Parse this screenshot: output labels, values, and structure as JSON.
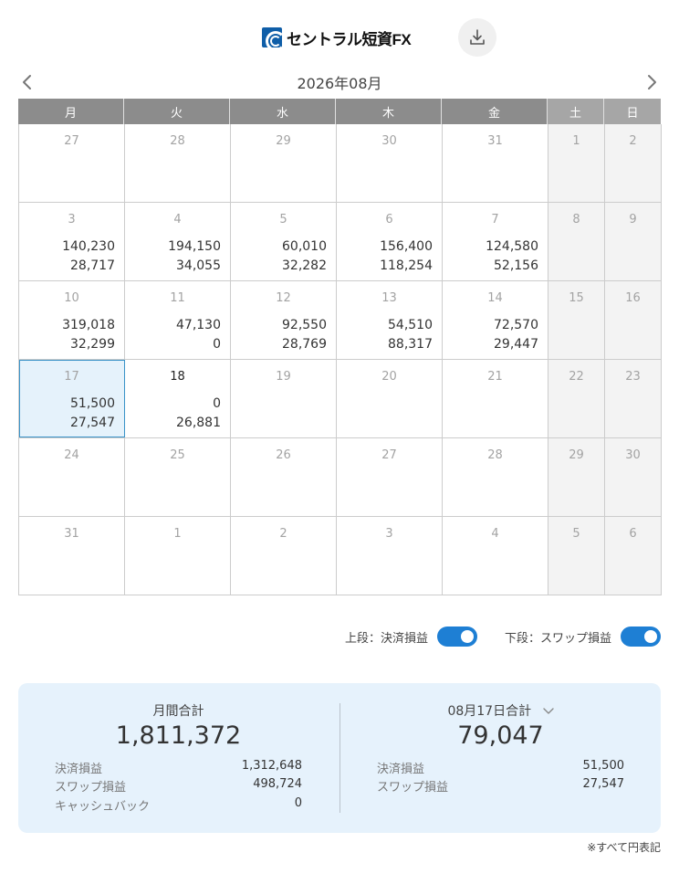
{
  "header": {
    "logo_text": "セントラル短資FX",
    "download_icon": "download-icon"
  },
  "month": {
    "title": "2026年08月",
    "prev_icon": "chevron-left-icon",
    "next_icon": "chevron-right-icon"
  },
  "weekdays": [
    "月",
    "火",
    "水",
    "木",
    "金",
    "土",
    "日"
  ],
  "calendar": {
    "weeks": [
      [
        {
          "day": "27",
          "v1": "",
          "v2": ""
        },
        {
          "day": "28",
          "v1": "",
          "v2": ""
        },
        {
          "day": "29",
          "v1": "",
          "v2": ""
        },
        {
          "day": "30",
          "v1": "",
          "v2": ""
        },
        {
          "day": "31",
          "v1": "",
          "v2": ""
        },
        {
          "day": "1",
          "v1": "",
          "v2": ""
        },
        {
          "day": "2",
          "v1": "",
          "v2": ""
        }
      ],
      [
        {
          "day": "3",
          "v1": "140,230",
          "v2": "28,717"
        },
        {
          "day": "4",
          "v1": "194,150",
          "v2": "34,055"
        },
        {
          "day": "5",
          "v1": "60,010",
          "v2": "32,282"
        },
        {
          "day": "6",
          "v1": "156,400",
          "v2": "118,254"
        },
        {
          "day": "7",
          "v1": "124,580",
          "v2": "52,156"
        },
        {
          "day": "8",
          "v1": "",
          "v2": ""
        },
        {
          "day": "9",
          "v1": "",
          "v2": ""
        }
      ],
      [
        {
          "day": "10",
          "v1": "319,018",
          "v2": "32,299"
        },
        {
          "day": "11",
          "v1": "47,130",
          "v2": "0"
        },
        {
          "day": "12",
          "v1": "92,550",
          "v2": "28,769"
        },
        {
          "day": "13",
          "v1": "54,510",
          "v2": "88,317"
        },
        {
          "day": "14",
          "v1": "72,570",
          "v2": "29,447"
        },
        {
          "day": "15",
          "v1": "",
          "v2": ""
        },
        {
          "day": "16",
          "v1": "",
          "v2": ""
        }
      ],
      [
        {
          "day": "17",
          "v1": "51,500",
          "v2": "27,547"
        },
        {
          "day": "18",
          "v1": "0",
          "v2": "26,881"
        },
        {
          "day": "19",
          "v1": "",
          "v2": ""
        },
        {
          "day": "20",
          "v1": "",
          "v2": ""
        },
        {
          "day": "21",
          "v1": "",
          "v2": ""
        },
        {
          "day": "22",
          "v1": "",
          "v2": ""
        },
        {
          "day": "23",
          "v1": "",
          "v2": ""
        }
      ],
      [
        {
          "day": "24",
          "v1": "",
          "v2": ""
        },
        {
          "day": "25",
          "v1": "",
          "v2": ""
        },
        {
          "day": "26",
          "v1": "",
          "v2": ""
        },
        {
          "day": "27",
          "v1": "",
          "v2": ""
        },
        {
          "day": "28",
          "v1": "",
          "v2": ""
        },
        {
          "day": "29",
          "v1": "",
          "v2": ""
        },
        {
          "day": "30",
          "v1": "",
          "v2": ""
        }
      ],
      [
        {
          "day": "31",
          "v1": "",
          "v2": ""
        },
        {
          "day": "1",
          "v1": "",
          "v2": ""
        },
        {
          "day": "2",
          "v1": "",
          "v2": ""
        },
        {
          "day": "3",
          "v1": "",
          "v2": ""
        },
        {
          "day": "4",
          "v1": "",
          "v2": ""
        },
        {
          "day": "5",
          "v1": "",
          "v2": ""
        },
        {
          "day": "6",
          "v1": "",
          "v2": ""
        }
      ]
    ],
    "selected_day": "17",
    "today_day": "18"
  },
  "toggles": {
    "upper_label": "上段：決済損益",
    "upper_on": true,
    "lower_label": "下段：スワップ損益",
    "lower_on": true
  },
  "summary": {
    "monthly": {
      "title": "月間合計",
      "total": "1,811,372",
      "rows": [
        {
          "label": "決済損益",
          "value": "1,312,648"
        },
        {
          "label": "スワップ損益",
          "value": "498,724"
        },
        {
          "label": "キャッシュバック",
          "value": "0"
        }
      ]
    },
    "daily": {
      "title": "08月17日合計",
      "total": "79,047",
      "rows": [
        {
          "label": "決済損益",
          "value": "51,500"
        },
        {
          "label": "スワップ損益",
          "value": "27,547"
        }
      ]
    }
  },
  "footnote": "※すべて円表記",
  "colors": {
    "header_weekday": "#8c8c8c",
    "header_weekend": "#a6a6a6",
    "weekend_cell": "#f3f3f3",
    "selected_cell": "#e5f2fb",
    "selected_border": "#3a93c8",
    "toggle_on": "#1e7fd4",
    "summary_bg": "#e6f2fc"
  }
}
